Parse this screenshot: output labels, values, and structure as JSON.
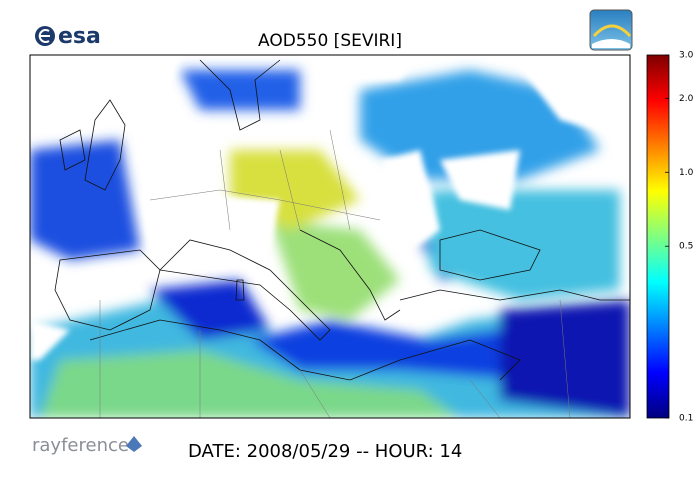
{
  "title": "AOD550   [SEVIRI]",
  "logos": {
    "esa": "esa",
    "rayference": "rayference"
  },
  "footer": {
    "date": "DATE: 2008/05/29 -- HOUR: 14"
  },
  "colorbar": {
    "scale": "log",
    "lim": [
      0.1,
      3.0
    ],
    "ticks": [
      0.1,
      0.5,
      {
        "value": 1,
        "label": "1.0"
      },
      {
        "value": 2,
        "label": "2.0"
      },
      {
        "value": 3,
        "label": "3.0"
      }
    ],
    "colors": [
      "#00007f",
      "#0000ff",
      "#0080ff",
      "#00ffff",
      "#80ff80",
      "#ffff00",
      "#ff8000",
      "#ff0000",
      "#7f0000"
    ]
  }
}
